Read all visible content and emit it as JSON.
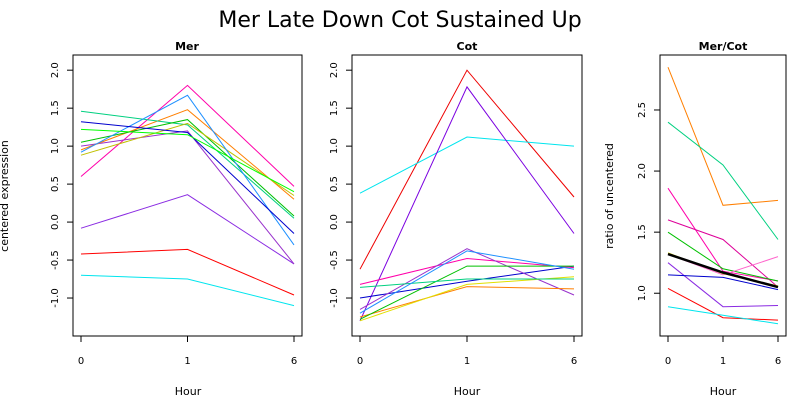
{
  "figure": {
    "title": "Mer Late Down Cot Sustained Up"
  },
  "chart_data": [
    {
      "type": "line",
      "title": "Mer",
      "xlabel": "Hour",
      "ylabel": "centered expression",
      "x": [
        "0",
        "1",
        "6"
      ],
      "ylim": [
        -1.5,
        2.2
      ],
      "yticks": [
        -1.0,
        -0.5,
        0.0,
        0.5,
        1.0,
        1.5,
        2.0
      ],
      "ytick_labels": [
        "-1.0",
        "-0.5",
        "0.0",
        "0.5",
        "1.0",
        "1.5",
        "2.0"
      ],
      "series": [
        {
          "color": "#ff0000",
          "values": [
            -0.42,
            -0.36,
            -0.96
          ]
        },
        {
          "color": "#00e5ee",
          "values": [
            -0.7,
            -0.75,
            -1.1
          ]
        },
        {
          "color": "#8a2be2",
          "values": [
            -0.08,
            0.36,
            -0.55
          ]
        },
        {
          "color": "#ff00aa",
          "values": [
            0.6,
            1.8,
            0.47
          ]
        },
        {
          "color": "#9932cc",
          "values": [
            1.0,
            1.2,
            -0.55
          ]
        },
        {
          "color": "#ff7f00",
          "values": [
            0.95,
            1.48,
            0.3
          ]
        },
        {
          "color": "#00d080",
          "values": [
            1.46,
            1.28,
            0.05
          ]
        },
        {
          "color": "#00c000",
          "values": [
            1.05,
            1.35,
            0.08
          ]
        },
        {
          "color": "#c0c000",
          "values": [
            0.88,
            1.3,
            0.35
          ]
        },
        {
          "color": "#1e90ff",
          "values": [
            0.92,
            1.67,
            -0.3
          ]
        },
        {
          "color": "#0000cd",
          "values": [
            1.32,
            1.18,
            -0.15
          ]
        },
        {
          "color": "#00ff00",
          "values": [
            1.22,
            1.15,
            0.4
          ]
        }
      ]
    },
    {
      "type": "line",
      "title": "Cot",
      "xlabel": "Hour",
      "ylabel": "",
      "x": [
        "0",
        "1",
        "6"
      ],
      "ylim": [
        -1.5,
        2.2
      ],
      "yticks": [
        -1.0,
        -0.5,
        0.0,
        0.5,
        1.0,
        1.5,
        2.0
      ],
      "ytick_labels": [
        "-1.0",
        "-0.5",
        "0.0",
        "0.5",
        "1.0",
        "1.5",
        "2.0"
      ],
      "series": [
        {
          "color": "#ee0000",
          "values": [
            -0.62,
            2.0,
            0.33
          ]
        },
        {
          "color": "#00e5ee",
          "values": [
            0.38,
            1.12,
            1.0
          ]
        },
        {
          "color": "#7b00e0",
          "values": [
            -1.3,
            1.78,
            -0.15
          ]
        },
        {
          "color": "#0000cd",
          "values": [
            -1.0,
            -0.78,
            -0.58
          ]
        },
        {
          "color": "#ff00aa",
          "values": [
            -0.82,
            -0.48,
            -0.6
          ]
        },
        {
          "color": "#9932cc",
          "values": [
            -1.15,
            -0.35,
            -0.96
          ]
        },
        {
          "color": "#ff7f00",
          "values": [
            -1.25,
            -0.85,
            -0.88
          ]
        },
        {
          "color": "#e0e000",
          "values": [
            -1.3,
            -0.82,
            -0.72
          ]
        },
        {
          "color": "#00c000",
          "values": [
            -1.28,
            -0.58,
            -0.58
          ]
        },
        {
          "color": "#00d080",
          "values": [
            -0.86,
            -0.75,
            -0.75
          ]
        },
        {
          "color": "#1e90ff",
          "values": [
            -1.2,
            -0.38,
            -0.62
          ]
        }
      ]
    },
    {
      "type": "line",
      "title": "Mer/Cot",
      "xlabel": "Hour",
      "ylabel": "ratio of uncentered",
      "x": [
        "0",
        "1",
        "6"
      ],
      "ylim": [
        0.65,
        2.95
      ],
      "yticks": [
        1.0,
        1.5,
        2.0,
        2.5
      ],
      "ytick_labels": [
        "1.0",
        "1.5",
        "2.0",
        "2.5"
      ],
      "series": [
        {
          "color": "#ff7f00",
          "values": [
            2.85,
            1.72,
            1.76
          ]
        },
        {
          "color": "#00d080",
          "values": [
            2.4,
            2.05,
            1.44
          ]
        },
        {
          "color": "#ff00aa",
          "values": [
            1.86,
            1.18,
            1.1
          ]
        },
        {
          "color": "#dd0099",
          "values": [
            1.6,
            1.44,
            1.05
          ]
        },
        {
          "color": "#00c000",
          "values": [
            1.5,
            1.2,
            1.1
          ]
        },
        {
          "color": "#ff0000",
          "values": [
            1.04,
            0.8,
            0.78
          ]
        },
        {
          "color": "#00e5ee",
          "values": [
            0.89,
            0.82,
            0.75
          ]
        },
        {
          "color": "#8a2be2",
          "values": [
            1.25,
            0.89,
            0.9
          ]
        },
        {
          "color": "#0000cd",
          "values": [
            1.15,
            1.13,
            1.03
          ]
        },
        {
          "color": "#ff66cc",
          "values": [
            1.32,
            1.15,
            1.3
          ]
        },
        {
          "color": "#e0e000",
          "values": [
            1.33,
            1.16,
            1.06
          ]
        },
        {
          "color": "#000000",
          "values": [
            1.32,
            1.17,
            1.05
          ],
          "width": 2.5
        }
      ]
    }
  ]
}
